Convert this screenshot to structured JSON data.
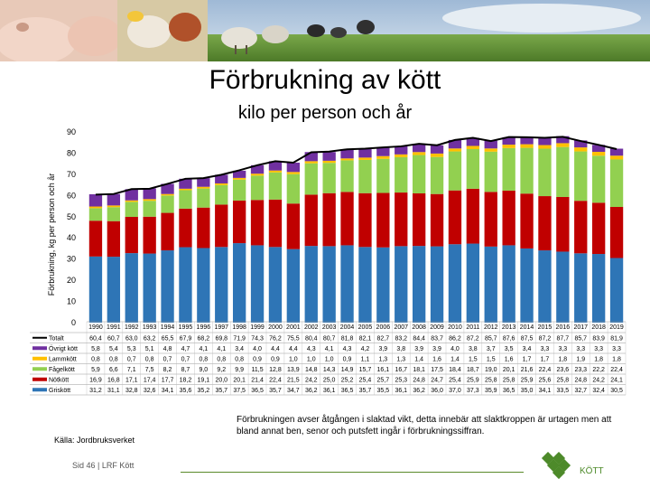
{
  "title": "Förbrukning av kött",
  "subtitle": "kilo per person och år",
  "source": "Källa: Jordbruksverket",
  "note": "Förbrukningen avser åtgången i slaktad vikt, detta innebär att slaktkroppen är urtagen men att bland annat ben, senor och putsfett ingår i förbrukningssiffran.",
  "footer": "Sid 46 | LRF Kött",
  "logo_text": "KÖTT",
  "colors": {
    "Totalt": "#000000",
    "Övrigt kött": "#7030a0",
    "Lammkött": "#ffc000",
    "Fågelkött": "#92d050",
    "Nötkött": "#c00000",
    "Griskött": "#2e75b6"
  },
  "chart_data": {
    "type": "bar",
    "stacked": true,
    "ylabel": "Förbrukning, kg per person och år",
    "ylim": [
      0,
      90
    ],
    "yticks": [
      0,
      10,
      20,
      30,
      40,
      50,
      60,
      70,
      80,
      90
    ],
    "grid": false,
    "legend": "table-below",
    "categories": [
      "1990",
      "1991",
      "1992",
      "1993",
      "1994",
      "1995",
      "1996",
      "1997",
      "1998",
      "1999",
      "2000",
      "2001",
      "2002",
      "2003",
      "2004",
      "2005",
      "2006",
      "2007",
      "2008",
      "2009",
      "2010",
      "2011",
      "2012",
      "2013",
      "2014",
      "2015",
      "2016",
      "2017",
      "2018",
      "2019"
    ],
    "line": {
      "name": "Totalt",
      "values": [
        "60,4",
        "60,7",
        "63,0",
        "63,2",
        "65,5",
        "67,9",
        "68,2",
        "69,8",
        "71,9",
        "74,3",
        "76,2",
        "75,5",
        "80,4",
        "80,7",
        "81,8",
        "82,1",
        "82,7",
        "83,2",
        "84,4",
        "83,7",
        "86,2",
        "87,2",
        "85,7",
        "87,6",
        "87,5",
        "87,2",
        "87,7",
        "85,7",
        "83,9",
        "81,9"
      ]
    },
    "series": [
      {
        "name": "Övrigt kött",
        "values": [
          "5,8",
          "5,4",
          "5,3",
          "5,1",
          "4,8",
          "4,7",
          "4,1",
          "4,1",
          "3,4",
          "4,0",
          "4,4",
          "4,4",
          "4,3",
          "4,1",
          "4,3",
          "4,2",
          "3,9",
          "3,8",
          "3,9",
          "3,9",
          "4,0",
          "3,8",
          "3,7",
          "3,5",
          "3,4",
          "3,3",
          "3,3",
          "3,3",
          "3,3",
          "3,3"
        ]
      },
      {
        "name": "Lammkött",
        "values": [
          "0,8",
          "0,8",
          "0,7",
          "0,8",
          "0,7",
          "0,7",
          "0,8",
          "0,8",
          "0,8",
          "0,9",
          "0,9",
          "1,0",
          "1,0",
          "1,0",
          "0,9",
          "1,1",
          "1,3",
          "1,3",
          "1,4",
          "1,6",
          "1,4",
          "1,5",
          "1,5",
          "1,6",
          "1,7",
          "1,7",
          "1,8",
          "1,9",
          "1,8",
          "1,8"
        ]
      },
      {
        "name": "Fågelkött",
        "values": [
          "5,9",
          "6,6",
          "7,1",
          "7,5",
          "8,2",
          "8,7",
          "9,0",
          "9,2",
          "9,9",
          "11,5",
          "12,8",
          "13,9",
          "14,8",
          "14,3",
          "14,9",
          "15,7",
          "16,1",
          "16,7",
          "18,1",
          "17,5",
          "18,4",
          "18,7",
          "19,0",
          "20,1",
          "21,6",
          "22,4",
          "23,6",
          "23,3",
          "22,2",
          "22,4"
        ]
      },
      {
        "name": "Nötkött",
        "values": [
          "16,9",
          "16,8",
          "17,1",
          "17,4",
          "17,7",
          "18,2",
          "19,1",
          "20,0",
          "20,1",
          "21,4",
          "22,4",
          "21,5",
          "24,2",
          "25,0",
          "25,2",
          "25,4",
          "25,7",
          "25,3",
          "24,8",
          "24,7",
          "25,4",
          "25,9",
          "25,8",
          "25,8",
          "25,9",
          "25,6",
          "25,8",
          "24,8",
          "24,2",
          "24,1"
        ]
      },
      {
        "name": "Griskött",
        "values": [
          "31,2",
          "31,1",
          "32,8",
          "32,6",
          "34,1",
          "35,6",
          "35,2",
          "35,7",
          "37,5",
          "36,5",
          "35,7",
          "34,7",
          "36,2",
          "36,1",
          "36,5",
          "35,7",
          "35,5",
          "36,1",
          "36,2",
          "36,0",
          "37,0",
          "37,3",
          "35,9",
          "36,5",
          "35,0",
          "34,1",
          "33,5",
          "32,7",
          "32,4",
          "30,5"
        ]
      }
    ]
  }
}
